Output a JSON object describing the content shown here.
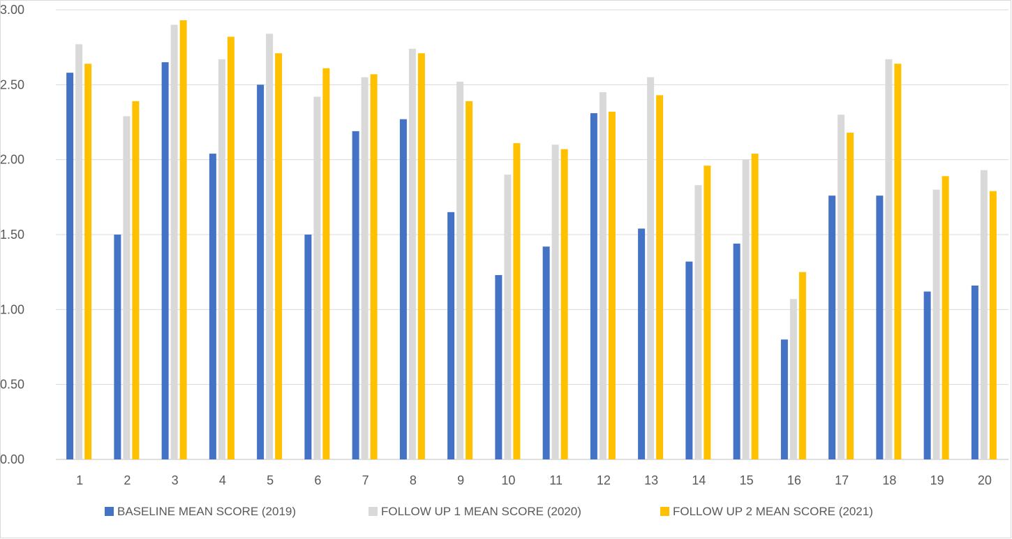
{
  "chart_data": {
    "type": "bar",
    "title_fragment": "",
    "categories": [
      "1",
      "2",
      "3",
      "4",
      "5",
      "6",
      "7",
      "8",
      "9",
      "10",
      "11",
      "12",
      "13",
      "14",
      "15",
      "16",
      "17",
      "18",
      "19",
      "20"
    ],
    "series": [
      {
        "name": "BASELINE MEAN SCORE (2019)",
        "color": "#4472c4",
        "values": [
          2.58,
          1.5,
          2.65,
          2.04,
          2.5,
          1.5,
          2.19,
          2.27,
          1.65,
          1.23,
          1.42,
          2.31,
          1.54,
          1.32,
          1.44,
          0.8,
          1.76,
          1.76,
          1.12,
          1.16
        ]
      },
      {
        "name": "FOLLOW UP 1 MEAN SCORE (2020)",
        "color": "#d9d9d9",
        "values": [
          2.77,
          2.29,
          2.9,
          2.67,
          2.84,
          2.42,
          2.55,
          2.74,
          2.52,
          1.9,
          2.1,
          2.45,
          2.55,
          1.83,
          2.0,
          1.07,
          2.3,
          2.67,
          1.8,
          1.93
        ]
      },
      {
        "name": "FOLLOW UP 2 MEAN SCORE (2021)",
        "color": "#ffc000",
        "values": [
          2.64,
          2.39,
          2.93,
          2.82,
          2.71,
          2.61,
          2.57,
          2.71,
          2.39,
          2.11,
          2.07,
          2.32,
          2.43,
          1.96,
          2.04,
          1.25,
          2.18,
          2.64,
          1.89,
          1.79
        ]
      }
    ],
    "y_ticks": [
      "0.00",
      "0.50",
      "1.00",
      "1.50",
      "2.00",
      "2.50",
      "3.00"
    ],
    "ylim": [
      0,
      3
    ],
    "grid": true,
    "legend_position": "bottom"
  }
}
